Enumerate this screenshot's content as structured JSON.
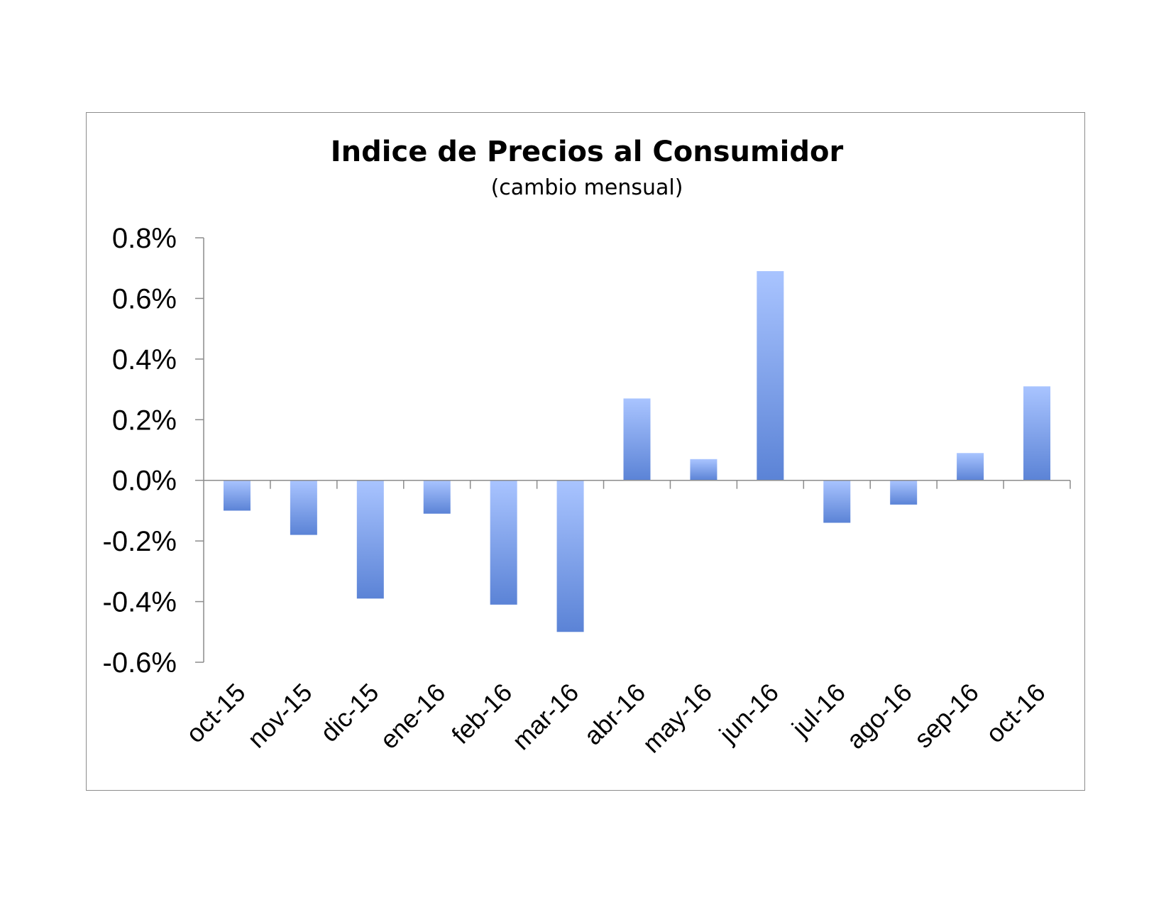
{
  "chart_data": {
    "type": "bar",
    "title": "Indice de Precios al Consumidor",
    "subtitle": "(cambio mensual)",
    "xlabel": "",
    "ylabel": "",
    "categories": [
      "oct-15",
      "nov-15",
      "dic-15",
      "ene-16",
      "feb-16",
      "mar-16",
      "abr-16",
      "may-16",
      "jun-16",
      "jul-16",
      "ago-16",
      "sep-16",
      "oct-16"
    ],
    "values": [
      -0.1,
      -0.18,
      -0.39,
      -0.11,
      -0.41,
      -0.5,
      0.27,
      0.07,
      0.69,
      -0.14,
      -0.08,
      0.09,
      0.31
    ],
    "ylim": [
      -0.6,
      0.8
    ],
    "yticks": [
      0.8,
      0.6,
      0.4,
      0.2,
      0.0,
      -0.2,
      -0.4,
      -0.6
    ],
    "ytick_labels": [
      "0.8%",
      "0.6%",
      "0.4%",
      "0.2%",
      "0.0%",
      "-0.2%",
      "-0.4%",
      "-0.6%"
    ],
    "grid": false,
    "legend": "none",
    "bar_color_light": "#a9c4ff",
    "bar_color_dark": "#5b83d6"
  }
}
